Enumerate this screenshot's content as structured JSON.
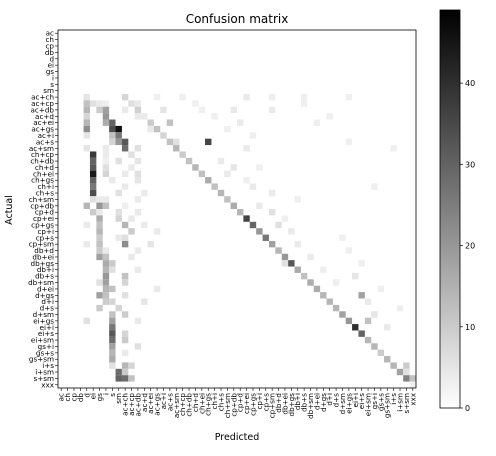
{
  "chart_data": {
    "type": "heatmap",
    "title": "Confusion matrix",
    "xlabel": "Predicted",
    "ylabel": "Actual",
    "labels": [
      "ac",
      "ch",
      "cp",
      "db",
      "d",
      "ei",
      "gs",
      "i",
      "s",
      "sm",
      "ac+ch",
      "ac+cp",
      "ac+db",
      "ac+d",
      "ac+ei",
      "ac+gs",
      "ac+i",
      "ac+s",
      "ac+sm",
      "ch+cp",
      "ch+db",
      "ch+d",
      "ch+ei",
      "ch+gs",
      "ch+i",
      "ch+s",
      "ch+sm",
      "cp+db",
      "cp+d",
      "cp+ei",
      "cp+gs",
      "cp+i",
      "cp+s",
      "cp+sm",
      "db+d",
      "db+ei",
      "db+gs",
      "db+i",
      "db+s",
      "db+sm",
      "d+ei",
      "d+gs",
      "d+i",
      "d+s",
      "d+sm",
      "ei+gs",
      "ei+i",
      "ei+s",
      "ei+sm",
      "gs+i",
      "gs+s",
      "gs+sm",
      "i+s",
      "i+sm",
      "s+sm",
      "xxx"
    ],
    "colormap": "gray_r",
    "colorbar": {
      "min": 0,
      "max": 49,
      "ticks": [
        0,
        10,
        20,
        30,
        40
      ]
    },
    "cells": [
      [
        10,
        4,
        5
      ],
      [
        10,
        10,
        8
      ],
      [
        10,
        15,
        3
      ],
      [
        10,
        19,
        3
      ],
      [
        10,
        29,
        4
      ],
      [
        10,
        33,
        3
      ],
      [
        10,
        38,
        3
      ],
      [
        10,
        45,
        3
      ],
      [
        11,
        4,
        12
      ],
      [
        11,
        5,
        6
      ],
      [
        11,
        6,
        4
      ],
      [
        11,
        7,
        3
      ],
      [
        11,
        11,
        6
      ],
      [
        11,
        12,
        4
      ],
      [
        11,
        21,
        3
      ],
      [
        11,
        38,
        3
      ],
      [
        12,
        4,
        14
      ],
      [
        12,
        6,
        10
      ],
      [
        12,
        7,
        18
      ],
      [
        12,
        10,
        4
      ],
      [
        12,
        12,
        9
      ],
      [
        12,
        16,
        5
      ],
      [
        12,
        22,
        3
      ],
      [
        12,
        27,
        4
      ],
      [
        12,
        33,
        4
      ],
      [
        13,
        4,
        8
      ],
      [
        13,
        7,
        20
      ],
      [
        13,
        12,
        4
      ],
      [
        13,
        13,
        4
      ],
      [
        13,
        24,
        3
      ],
      [
        13,
        42,
        3
      ],
      [
        14,
        4,
        14
      ],
      [
        14,
        7,
        16
      ],
      [
        14,
        8,
        30
      ],
      [
        14,
        14,
        10
      ],
      [
        14,
        17,
        12
      ],
      [
        14,
        28,
        4
      ],
      [
        14,
        40,
        3
      ],
      [
        15,
        4,
        22
      ],
      [
        15,
        8,
        34
      ],
      [
        15,
        9,
        46
      ],
      [
        15,
        14,
        4
      ],
      [
        15,
        15,
        12
      ],
      [
        15,
        26,
        3
      ],
      [
        16,
        4,
        5
      ],
      [
        16,
        8,
        12
      ],
      [
        16,
        9,
        26
      ],
      [
        16,
        16,
        8
      ],
      [
        16,
        30,
        3
      ],
      [
        17,
        8,
        8
      ],
      [
        17,
        9,
        20
      ],
      [
        17,
        10,
        32
      ],
      [
        17,
        17,
        12
      ],
      [
        17,
        18,
        6
      ],
      [
        17,
        23,
        36
      ],
      [
        17,
        45,
        3
      ],
      [
        18,
        4,
        5
      ],
      [
        18,
        7,
        4
      ],
      [
        18,
        10,
        28
      ],
      [
        18,
        12,
        6
      ],
      [
        18,
        18,
        14
      ],
      [
        18,
        29,
        4
      ],
      [
        18,
        52,
        3
      ],
      [
        19,
        5,
        38
      ],
      [
        19,
        7,
        4
      ],
      [
        19,
        11,
        6
      ],
      [
        19,
        19,
        10
      ],
      [
        20,
        5,
        30
      ],
      [
        20,
        7,
        3
      ],
      [
        20,
        9,
        6
      ],
      [
        20,
        12,
        5
      ],
      [
        20,
        20,
        12
      ],
      [
        20,
        25,
        4
      ],
      [
        21,
        5,
        32
      ],
      [
        21,
        7,
        6
      ],
      [
        21,
        11,
        4
      ],
      [
        21,
        21,
        14
      ],
      [
        21,
        27,
        5
      ],
      [
        21,
        31,
        3
      ],
      [
        22,
        5,
        44
      ],
      [
        22,
        7,
        8
      ],
      [
        22,
        10,
        4
      ],
      [
        22,
        12,
        6
      ],
      [
        22,
        22,
        12
      ],
      [
        22,
        26,
        4
      ],
      [
        23,
        5,
        30
      ],
      [
        23,
        8,
        4
      ],
      [
        23,
        12,
        5
      ],
      [
        23,
        23,
        16
      ],
      [
        23,
        29,
        3
      ],
      [
        24,
        5,
        26
      ],
      [
        24,
        10,
        4
      ],
      [
        24,
        24,
        12
      ],
      [
        24,
        30,
        4
      ],
      [
        24,
        49,
        3
      ],
      [
        25,
        5,
        34
      ],
      [
        25,
        9,
        6
      ],
      [
        25,
        13,
        4
      ],
      [
        25,
        25,
        14
      ],
      [
        25,
        33,
        4
      ],
      [
        26,
        5,
        6
      ],
      [
        26,
        6,
        4
      ],
      [
        26,
        7,
        4
      ],
      [
        26,
        12,
        4
      ],
      [
        26,
        26,
        12
      ],
      [
        26,
        37,
        3
      ],
      [
        27,
        4,
        14
      ],
      [
        27,
        6,
        20
      ],
      [
        27,
        7,
        12
      ],
      [
        27,
        10,
        3
      ],
      [
        27,
        27,
        16
      ],
      [
        27,
        31,
        4
      ],
      [
        28,
        5,
        10
      ],
      [
        28,
        6,
        4
      ],
      [
        28,
        9,
        6
      ],
      [
        28,
        12,
        4
      ],
      [
        28,
        28,
        14
      ],
      [
        28,
        33,
        6
      ],
      [
        29,
        6,
        16
      ],
      [
        29,
        9,
        8
      ],
      [
        29,
        11,
        4
      ],
      [
        29,
        29,
        36
      ],
      [
        29,
        35,
        3
      ],
      [
        30,
        4,
        4
      ],
      [
        30,
        6,
        12
      ],
      [
        30,
        10,
        14
      ],
      [
        30,
        13,
        4
      ],
      [
        30,
        30,
        30
      ],
      [
        30,
        34,
        6
      ],
      [
        31,
        6,
        14
      ],
      [
        31,
        11,
        10
      ],
      [
        31,
        15,
        4
      ],
      [
        31,
        31,
        20
      ],
      [
        31,
        36,
        4
      ],
      [
        32,
        6,
        10
      ],
      [
        32,
        9,
        4
      ],
      [
        32,
        10,
        6
      ],
      [
        32,
        32,
        26
      ],
      [
        32,
        44,
        3
      ],
      [
        33,
        4,
        4
      ],
      [
        33,
        6,
        12
      ],
      [
        33,
        10,
        22
      ],
      [
        33,
        14,
        5
      ],
      [
        33,
        33,
        18
      ],
      [
        33,
        37,
        4
      ],
      [
        34,
        6,
        10
      ],
      [
        34,
        7,
        4
      ],
      [
        34,
        12,
        4
      ],
      [
        34,
        34,
        14
      ],
      [
        34,
        45,
        3
      ],
      [
        35,
        6,
        18
      ],
      [
        35,
        7,
        12
      ],
      [
        35,
        11,
        4
      ],
      [
        35,
        35,
        20
      ],
      [
        35,
        39,
        4
      ],
      [
        36,
        7,
        16
      ],
      [
        36,
        8,
        10
      ],
      [
        36,
        35,
        6
      ],
      [
        36,
        36,
        32
      ],
      [
        36,
        47,
        3
      ],
      [
        37,
        7,
        14
      ],
      [
        37,
        8,
        6
      ],
      [
        37,
        12,
        4
      ],
      [
        37,
        37,
        16
      ],
      [
        37,
        41,
        3
      ],
      [
        38,
        7,
        20
      ],
      [
        38,
        10,
        12
      ],
      [
        38,
        38,
        12
      ],
      [
        38,
        46,
        5
      ],
      [
        39,
        6,
        6
      ],
      [
        39,
        7,
        18
      ],
      [
        39,
        10,
        8
      ],
      [
        39,
        39,
        16
      ],
      [
        39,
        43,
        3
      ],
      [
        40,
        7,
        14
      ],
      [
        40,
        8,
        12
      ],
      [
        40,
        15,
        4
      ],
      [
        40,
        40,
        16
      ],
      [
        40,
        50,
        3
      ],
      [
        41,
        6,
        18
      ],
      [
        41,
        7,
        12
      ],
      [
        41,
        10,
        6
      ],
      [
        41,
        41,
        14
      ],
      [
        41,
        47,
        18
      ],
      [
        42,
        7,
        10
      ],
      [
        42,
        8,
        8
      ],
      [
        42,
        13,
        5
      ],
      [
        42,
        42,
        14
      ],
      [
        42,
        48,
        4
      ],
      [
        43,
        6,
        10
      ],
      [
        43,
        9,
        8
      ],
      [
        43,
        43,
        14
      ],
      [
        43,
        53,
        3
      ],
      [
        44,
        8,
        12
      ],
      [
        44,
        10,
        10
      ],
      [
        44,
        44,
        18
      ],
      [
        44,
        49,
        5
      ],
      [
        45,
        4,
        6
      ],
      [
        45,
        8,
        18
      ],
      [
        45,
        12,
        4
      ],
      [
        45,
        45,
        20
      ],
      [
        45,
        48,
        12
      ],
      [
        46,
        8,
        26
      ],
      [
        46,
        46,
        40
      ],
      [
        46,
        51,
        4
      ],
      [
        47,
        8,
        32
      ],
      [
        47,
        10,
        8
      ],
      [
        47,
        47,
        30
      ],
      [
        48,
        8,
        28
      ],
      [
        48,
        10,
        10
      ],
      [
        48,
        48,
        14
      ],
      [
        49,
        8,
        18
      ],
      [
        49,
        12,
        6
      ],
      [
        49,
        49,
        14
      ],
      [
        50,
        8,
        14
      ],
      [
        50,
        10,
        4
      ],
      [
        50,
        50,
        10
      ],
      [
        51,
        8,
        16
      ],
      [
        51,
        51,
        14
      ],
      [
        52,
        8,
        6
      ],
      [
        52,
        10,
        14
      ],
      [
        52,
        11,
        8
      ],
      [
        52,
        52,
        14
      ],
      [
        52,
        54,
        10
      ],
      [
        53,
        9,
        28
      ],
      [
        53,
        10,
        10
      ],
      [
        53,
        53,
        18
      ],
      [
        53,
        54,
        6
      ],
      [
        54,
        9,
        30
      ],
      [
        54,
        10,
        28
      ],
      [
        54,
        11,
        12
      ],
      [
        54,
        54,
        24
      ],
      [
        54,
        55,
        12
      ],
      [
        55,
        55,
        3
      ]
    ]
  }
}
